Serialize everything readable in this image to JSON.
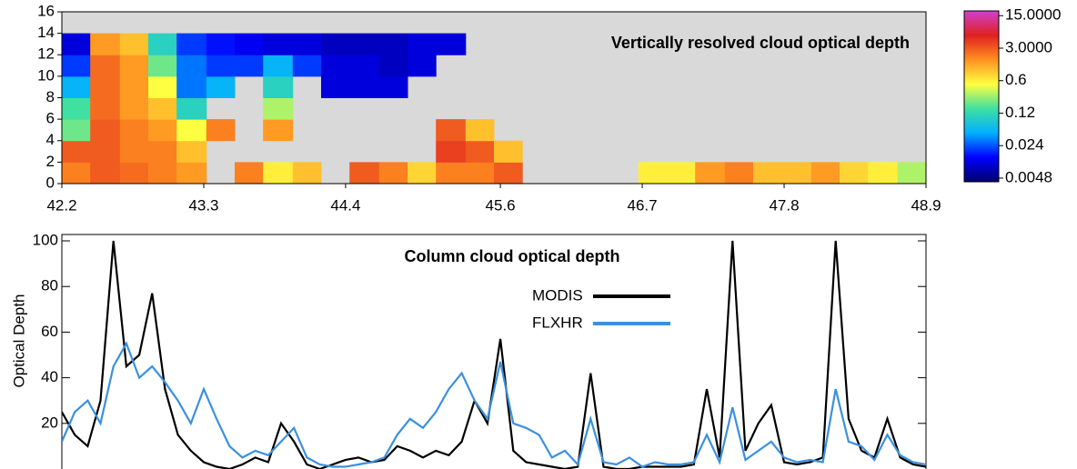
{
  "chart_data": [
    {
      "type": "heatmap",
      "title": "Vertically resolved cloud optical depth",
      "background": "#d9d9d9",
      "xbins": [
        42.2,
        42.42,
        42.65,
        42.87,
        43.09,
        43.32,
        43.54,
        43.76,
        43.99,
        44.21,
        44.43,
        44.66,
        44.88,
        45.1,
        45.33,
        45.55,
        45.77,
        46.0,
        46.22,
        46.44,
        46.67,
        46.89,
        47.11,
        47.34,
        47.56,
        47.78,
        48.01,
        48.23,
        48.45,
        48.68,
        48.9
      ],
      "ybins": [
        0,
        2,
        4,
        6,
        8,
        10,
        12,
        14,
        16
      ],
      "z": [
        [
          2,
          3,
          2.5,
          2,
          1.5,
          null,
          2,
          0.6,
          1,
          null,
          3,
          2,
          0.8,
          2,
          2,
          3,
          null,
          null,
          null,
          null,
          0.6,
          0.6,
          1.5,
          2,
          1,
          1,
          1.5,
          0.8,
          0.6,
          0.3
        ],
        [
          3,
          3,
          2,
          2,
          1,
          null,
          null,
          null,
          null,
          null,
          null,
          null,
          null,
          4,
          3,
          1,
          null,
          null,
          null,
          null,
          null,
          null,
          null,
          null,
          null,
          null,
          null,
          null,
          null,
          null
        ],
        [
          0.2,
          3,
          2,
          1.5,
          0.5,
          2,
          null,
          1.5,
          null,
          null,
          null,
          null,
          null,
          3,
          1,
          null,
          null,
          null,
          null,
          null,
          null,
          null,
          null,
          null,
          null,
          null,
          null,
          null,
          null,
          null
        ],
        [
          0.15,
          2.5,
          1.5,
          1,
          0.1,
          null,
          null,
          0.3,
          null,
          null,
          null,
          null,
          null,
          null,
          null,
          null,
          null,
          null,
          null,
          null,
          null,
          null,
          null,
          null,
          null,
          null,
          null,
          null,
          null,
          null
        ],
        [
          0.05,
          2.5,
          1.5,
          0.5,
          0.03,
          0.05,
          null,
          0.1,
          null,
          0.01,
          0.01,
          0.01,
          null,
          null,
          null,
          null,
          null,
          null,
          null,
          null,
          null,
          null,
          null,
          null,
          null,
          null,
          null,
          null,
          null,
          null
        ],
        [
          0.02,
          2.5,
          1.5,
          0.2,
          0.03,
          0.02,
          0.02,
          0.05,
          0.02,
          0.01,
          0.01,
          0.008,
          0.01,
          null,
          null,
          null,
          null,
          null,
          null,
          null,
          null,
          null,
          null,
          null,
          null,
          null,
          null,
          null,
          null,
          null
        ],
        [
          0.01,
          1.5,
          1,
          0.1,
          0.02,
          0.015,
          0.012,
          0.01,
          0.01,
          0.008,
          0.008,
          0.008,
          0.01,
          0.01,
          null,
          null,
          null,
          null,
          null,
          null,
          null,
          null,
          null,
          null,
          null,
          null,
          null,
          null,
          null,
          null
        ],
        [
          null,
          null,
          null,
          null,
          null,
          null,
          null,
          null,
          null,
          null,
          null,
          null,
          null,
          null,
          null,
          null,
          null,
          null,
          null,
          null,
          null,
          null,
          null,
          null,
          null,
          null,
          null,
          null,
          null,
          null
        ]
      ],
      "xlim": [
        42.2,
        48.9
      ],
      "ylim": [
        0,
        16
      ],
      "xticks": [
        42.2,
        43.3,
        44.4,
        45.6,
        46.7,
        47.8,
        48.9
      ],
      "yticks": [
        0,
        2,
        4,
        6,
        8,
        10,
        12,
        14,
        16
      ],
      "colorbar": {
        "scale": "log",
        "clim": [
          0.004,
          19
        ],
        "ticks": [
          {
            "value": 15,
            "label": "15.0000"
          },
          {
            "value": 3,
            "label": "3.0000"
          },
          0.6,
          0.12,
          0.024,
          0.0048
        ],
        "colormap": [
          "#00006e",
          "#0000ff",
          "#00b0ff",
          "#40e0a0",
          "#ffff40",
          "#ff9020",
          "#e02020",
          "#d040d0"
        ]
      }
    },
    {
      "type": "line",
      "title": "Column cloud optical depth",
      "ylabel": "Optical Depth",
      "x": [
        42.2,
        42.3,
        42.4,
        42.5,
        42.6,
        42.7,
        42.8,
        42.9,
        43.0,
        43.1,
        43.2,
        43.3,
        43.4,
        43.5,
        43.6,
        43.7,
        43.8,
        43.9,
        44.0,
        44.1,
        44.2,
        44.3,
        44.4,
        44.5,
        44.6,
        44.7,
        44.8,
        44.9,
        45.0,
        45.1,
        45.2,
        45.3,
        45.4,
        45.5,
        45.6,
        45.7,
        45.8,
        45.9,
        46.0,
        46.1,
        46.2,
        46.3,
        46.4,
        46.5,
        46.6,
        46.7,
        46.8,
        46.9,
        47.0,
        47.1,
        47.2,
        47.3,
        47.4,
        47.5,
        47.6,
        47.7,
        47.8,
        47.9,
        48.0,
        48.1,
        48.2,
        48.3,
        48.4,
        48.5,
        48.6,
        48.7,
        48.8,
        48.9
      ],
      "series": [
        {
          "name": "MODIS",
          "color": "#000000",
          "values": [
            25,
            15,
            10,
            30,
            100,
            45,
            50,
            77,
            35,
            15,
            8,
            3,
            1,
            0,
            2,
            5,
            3,
            20,
            12,
            2,
            0,
            2,
            4,
            5,
            3,
            4,
            10,
            8,
            5,
            8,
            6,
            12,
            30,
            20,
            57,
            8,
            3,
            2,
            1,
            0,
            1,
            42,
            1,
            0,
            0,
            1,
            1,
            1,
            1,
            2,
            35,
            5,
            100,
            8,
            20,
            28,
            3,
            2,
            3,
            5,
            100,
            22,
            8,
            5,
            22,
            5,
            2,
            1
          ]
        },
        {
          "name": "FLXHR",
          "color": "#3b90dd",
          "values": [
            12,
            25,
            30,
            20,
            45,
            55,
            40,
            45,
            38,
            30,
            20,
            35,
            22,
            10,
            5,
            8,
            6,
            12,
            18,
            5,
            2,
            1,
            1,
            2,
            3,
            5,
            15,
            22,
            18,
            25,
            35,
            42,
            30,
            22,
            47,
            20,
            18,
            15,
            5,
            8,
            2,
            22,
            3,
            2,
            5,
            1,
            3,
            2,
            2,
            3,
            15,
            3,
            27,
            4,
            8,
            12,
            5,
            3,
            4,
            3,
            35,
            12,
            10,
            4,
            15,
            6,
            3,
            2
          ]
        }
      ],
      "xlim": [
        42.2,
        48.9
      ],
      "ylim": [
        0,
        100
      ],
      "yticks": [
        20,
        40,
        60,
        80,
        100
      ],
      "legend": "top-center"
    }
  ]
}
